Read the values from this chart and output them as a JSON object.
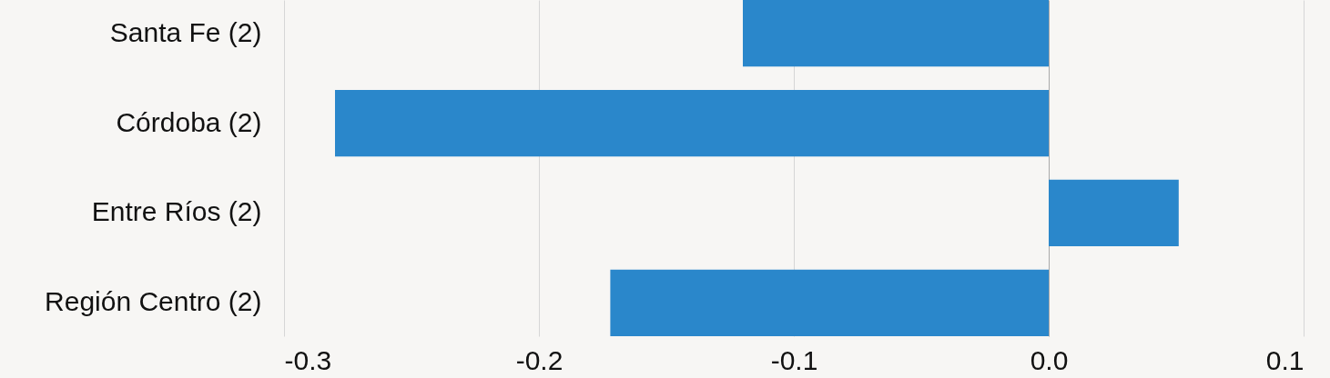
{
  "chart_data": {
    "type": "bar",
    "orientation": "horizontal",
    "categories": [
      "Santa Fe (2)",
      "Córdoba (2)",
      "Entre Ríos (2)",
      "Región Centro (2)"
    ],
    "values": [
      -0.12,
      -0.28,
      0.051,
      -0.172
    ],
    "color": "#2a87cb",
    "xlim": [
      -0.3,
      0.1
    ],
    "xticks": [
      -0.3,
      -0.2,
      -0.1,
      {
        "value": 0,
        "label": "0.0"
      },
      0.1
    ],
    "grid": "x"
  }
}
